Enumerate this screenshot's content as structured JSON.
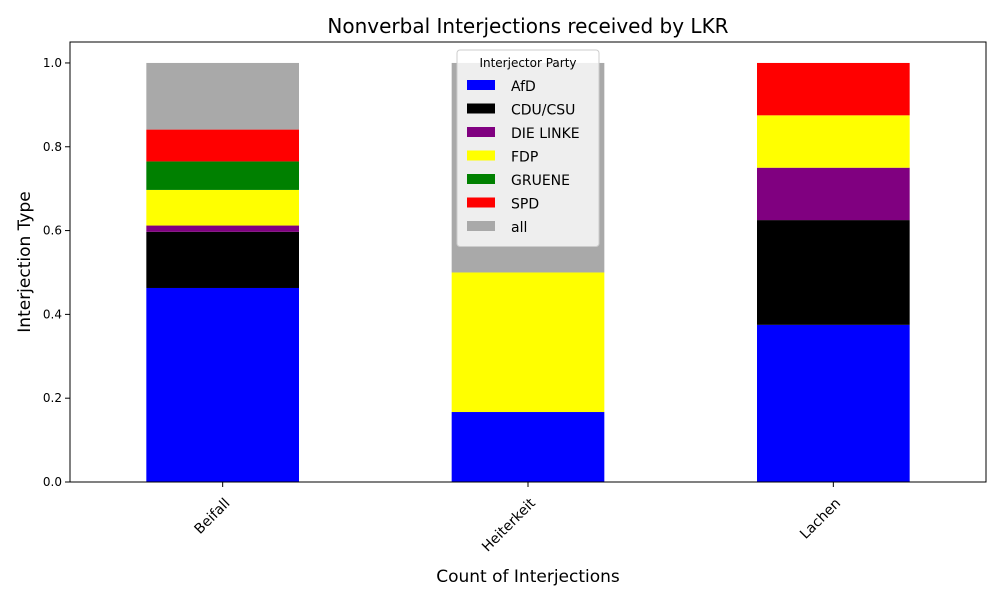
{
  "chart_data": {
    "type": "bar",
    "stacked": true,
    "title": "Nonverbal Interjections received by LKR",
    "xlabel": "Count of Interjections",
    "ylabel": "Interjection Type",
    "categories": [
      "Beifall",
      "Heiterkeit",
      "Lachen"
    ],
    "ylim": [
      0,
      1.05
    ],
    "yticks": [
      "0.0",
      "0.2",
      "0.4",
      "0.6",
      "0.8",
      "1.0"
    ],
    "ytick_values": [
      0,
      0.2,
      0.4,
      0.6,
      0.8,
      1.0
    ],
    "grid": false,
    "legend": {
      "title": "Interjector Party",
      "placement": "top-center"
    },
    "series": [
      {
        "name": "AfD",
        "color": "#0000ff",
        "values": [
          0.463,
          0.167,
          0.375
        ]
      },
      {
        "name": "CDU/CSU",
        "color": "#000000",
        "values": [
          0.134,
          0.0,
          0.25
        ]
      },
      {
        "name": "DIE LINKE",
        "color": "#800080",
        "values": [
          0.015,
          0.0,
          0.125
        ]
      },
      {
        "name": "FDP",
        "color": "#ffff00",
        "values": [
          0.085,
          0.333,
          0.125
        ]
      },
      {
        "name": "GRUENE",
        "color": "#008000",
        "values": [
          0.068,
          0.0,
          0.0
        ]
      },
      {
        "name": "SPD",
        "color": "#ff0000",
        "values": [
          0.076,
          0.0,
          0.125
        ]
      },
      {
        "name": "all",
        "color": "#a9a9a9",
        "values": [
          0.159,
          0.5,
          0.0
        ]
      }
    ]
  }
}
